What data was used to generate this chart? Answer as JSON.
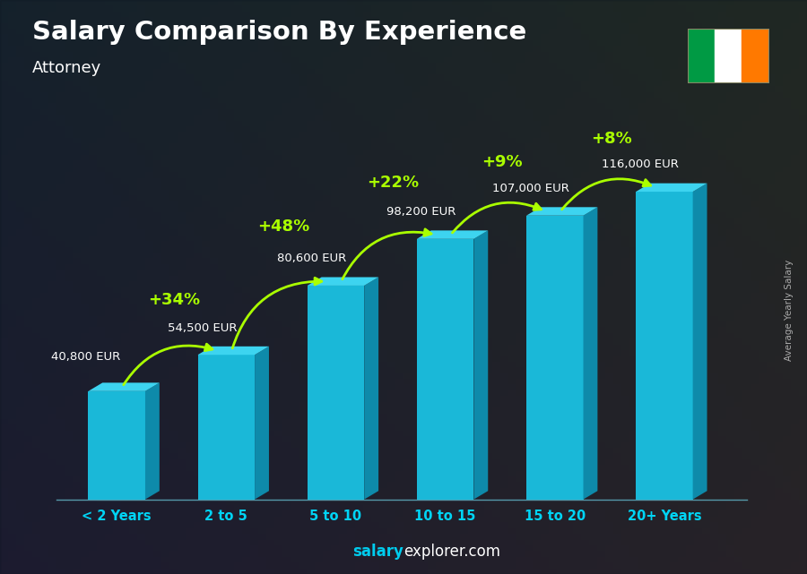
{
  "title": "Salary Comparison By Experience",
  "subtitle": "Attorney",
  "ylabel": "Average Yearly Salary",
  "categories": [
    "< 2 Years",
    "2 to 5",
    "5 to 10",
    "10 to 15",
    "15 to 20",
    "20+ Years"
  ],
  "values": [
    40800,
    54500,
    80600,
    98200,
    107000,
    116000
  ],
  "value_labels": [
    "40,800 EUR",
    "54,500 EUR",
    "80,600 EUR",
    "98,200 EUR",
    "107,000 EUR",
    "116,000 EUR"
  ],
  "pct_labels": [
    "+34%",
    "+48%",
    "+22%",
    "+9%",
    "+8%"
  ],
  "bar_color_front": "#1ab8d8",
  "bar_color_top": "#3dd4f0",
  "bar_color_side": "#0e8aaa",
  "bg_color_top": "#1a2a3a",
  "bg_color_bottom": "#2a3a2a",
  "title_color": "#ffffff",
  "subtitle_color": "#ffffff",
  "label_color": "#00d4f5",
  "pct_color": "#aaff00",
  "value_label_color": "#ffffff",
  "footer_color_salary": "#00ccee",
  "footer_color_explorer": "#ffffff",
  "ylim": [
    0,
    145000
  ],
  "flag_green": "#009a44",
  "flag_white": "#ffffff",
  "flag_orange": "#ff7900"
}
